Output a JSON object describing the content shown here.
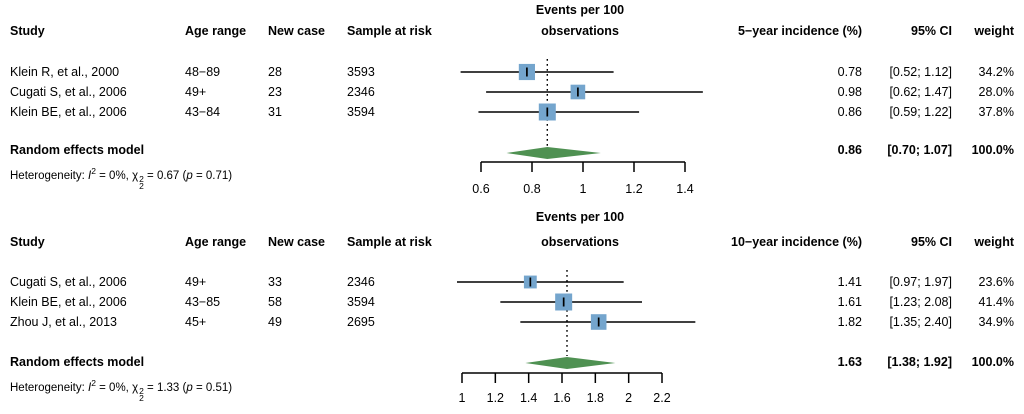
{
  "colors": {
    "square": "#74a5cd",
    "diamond": "#4f9152",
    "line": "#000000",
    "text": "#000000",
    "background": "#ffffff"
  },
  "chart_data": [
    {
      "type": "forest",
      "plot_title_line1": "Events per 100",
      "plot_title_line2": "observations",
      "effect_label": "5−year incidence (%)",
      "headers": {
        "study": "Study",
        "age_range": "Age range",
        "new_case": "New case",
        "sample_at_risk": "Sample at risk",
        "ci": "95% CI",
        "weight": "weight"
      },
      "studies": [
        {
          "study": "Klein R, et al., 2000",
          "age_range": "48−89",
          "new_case": "28",
          "sample_at_risk": "3593",
          "estimate": 0.78,
          "ci_low": 0.52,
          "ci_high": 1.12,
          "estimate_text": "0.78",
          "ci_text": "[0.52; 1.12]",
          "weight_pct": 34.2,
          "weight_text": "34.2%"
        },
        {
          "study": "Cugati S, et al., 2006",
          "age_range": "49+",
          "new_case": "23",
          "sample_at_risk": "2346",
          "estimate": 0.98,
          "ci_low": 0.62,
          "ci_high": 1.47,
          "estimate_text": "0.98",
          "ci_text": "[0.62; 1.47]",
          "weight_pct": 28.0,
          "weight_text": "28.0%"
        },
        {
          "study": "Klein BE, et al., 2006",
          "age_range": "43−84",
          "new_case": "31",
          "sample_at_risk": "3594",
          "estimate": 0.86,
          "ci_low": 0.59,
          "ci_high": 1.22,
          "estimate_text": "0.86",
          "ci_text": "[0.59; 1.22]",
          "weight_pct": 37.8,
          "weight_text": "37.8%"
        }
      ],
      "pooled": {
        "label": "Random effects model",
        "estimate": 0.86,
        "ci_low": 0.7,
        "ci_high": 1.07,
        "estimate_text": "0.86",
        "ci_text": "[0.70; 1.07]",
        "weight_text": "100.0%"
      },
      "heterogeneity": {
        "prefix": "Heterogeneity: ",
        "i_symbol": "I",
        "i_sup": "2",
        "seg_i": " = 0%, ",
        "chi_symbol": "χ",
        "chi_sub": "2",
        "chi_sup": "2",
        "seg_chi": " = 0.67 (",
        "p_symbol": "p",
        "seg_p": " = 0.71)"
      },
      "axis": {
        "min": 0.6,
        "max": 1.4,
        "ticks": [
          0.6,
          0.8,
          1.0,
          1.2,
          1.4
        ],
        "tick_labels": [
          "0.6",
          "0.8",
          "1",
          "1.2",
          "1.4"
        ]
      }
    },
    {
      "type": "forest",
      "plot_title_line1": "Events per 100",
      "plot_title_line2": "observations",
      "effect_label": "10−year incidence (%)",
      "headers": {
        "study": "Study",
        "age_range": "Age range",
        "new_case": "New case",
        "sample_at_risk": "Sample at risk",
        "ci": "95% CI",
        "weight": "weight"
      },
      "studies": [
        {
          "study": "Cugati S, et al., 2006",
          "age_range": "49+",
          "new_case": "33",
          "sample_at_risk": "2346",
          "estimate": 1.41,
          "ci_low": 0.97,
          "ci_high": 1.97,
          "estimate_text": "1.41",
          "ci_text": "[0.97; 1.97]",
          "weight_pct": 23.6,
          "weight_text": "23.6%"
        },
        {
          "study": "Klein BE, et al., 2006",
          "age_range": "43−85",
          "new_case": "58",
          "sample_at_risk": "3594",
          "estimate": 1.61,
          "ci_low": 1.23,
          "ci_high": 2.08,
          "estimate_text": "1.61",
          "ci_text": "[1.23; 2.08]",
          "weight_pct": 41.4,
          "weight_text": "41.4%"
        },
        {
          "study": "Zhou J, et al., 2013",
          "age_range": "45+",
          "new_case": "49",
          "sample_at_risk": "2695",
          "estimate": 1.82,
          "ci_low": 1.35,
          "ci_high": 2.4,
          "estimate_text": "1.82",
          "ci_text": "[1.35; 2.40]",
          "weight_pct": 34.9,
          "weight_text": "34.9%"
        }
      ],
      "pooled": {
        "label": "Random effects model",
        "estimate": 1.63,
        "ci_low": 1.38,
        "ci_high": 1.92,
        "estimate_text": "1.63",
        "ci_text": "[1.38; 1.92]",
        "weight_text": "100.0%"
      },
      "heterogeneity": {
        "prefix": "Heterogeneity: ",
        "i_symbol": "I",
        "i_sup": "2",
        "seg_i": " = 0%, ",
        "chi_symbol": "χ",
        "chi_sub": "2",
        "chi_sup": "2",
        "seg_chi": " = 1.33 (",
        "p_symbol": "p",
        "seg_p": " = 0.51)"
      },
      "axis": {
        "min": 1.0,
        "max": 2.2,
        "ticks": [
          1.0,
          1.2,
          1.4,
          1.6,
          1.8,
          2.0,
          2.2
        ],
        "tick_labels": [
          "1",
          "1.2",
          "1.4",
          "1.6",
          "1.8",
          "2",
          "2.2"
        ]
      }
    }
  ]
}
